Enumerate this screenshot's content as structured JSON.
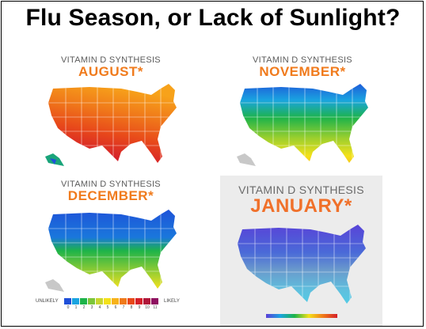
{
  "title": "Flu Season, or Lack of Sunlight?",
  "panels": [
    {
      "heading": "VITAMIN D SYNTHESIS",
      "month": "AUGUST*"
    },
    {
      "heading": "VITAMIN D SYNTHESIS",
      "month": "NOVEMBER*"
    },
    {
      "heading": "VITAMIN D SYNTHESIS",
      "month": "DECEMBER*"
    },
    {
      "heading": "VITAMIN D SYNTHESIS",
      "month": "JANUARY*"
    }
  ],
  "legend": {
    "low": "UNLIKELY",
    "high": "LIKELY",
    "ticks": [
      "0",
      "1",
      "2",
      "3",
      "4",
      "5",
      "6",
      "7",
      "8",
      "9",
      "10",
      "11"
    ],
    "colors": [
      "#1f4fd8",
      "#1aa4e0",
      "#1db34a",
      "#7cc63a",
      "#c8d62e",
      "#f4e11a",
      "#f7b21a",
      "#f07a1a",
      "#e8491a",
      "#d5202a",
      "#b0163a",
      "#8e1060"
    ]
  },
  "colors": {
    "month_orange": "#f07b1d",
    "month_january": "#f0702a"
  }
}
